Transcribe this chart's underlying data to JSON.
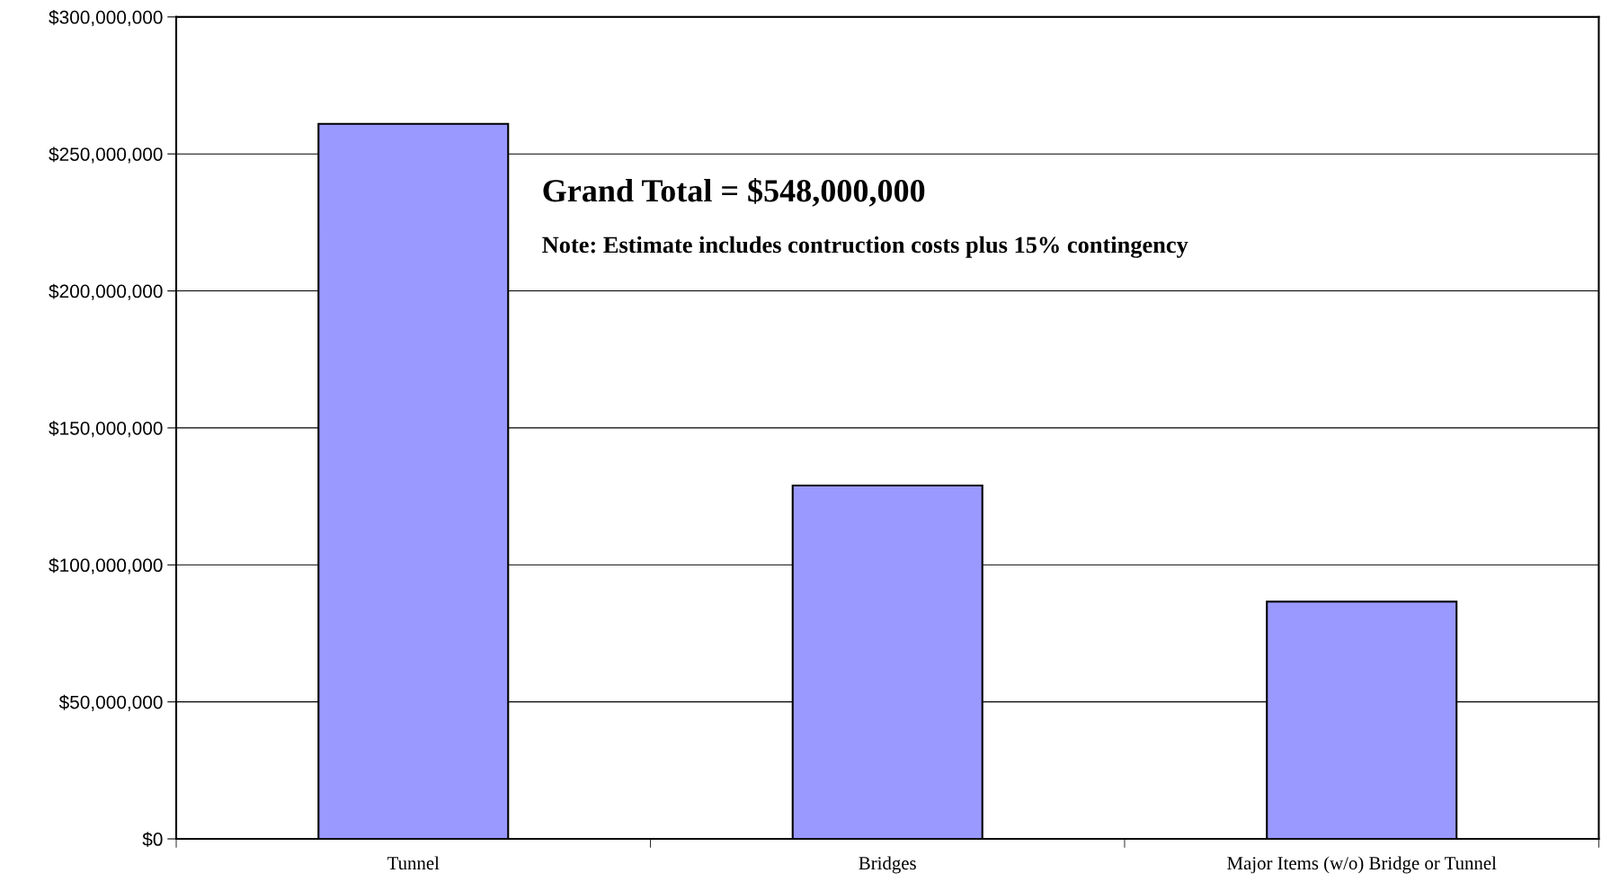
{
  "chart_data": {
    "type": "bar",
    "categories": [
      "Tunnel",
      "Bridges",
      "Major Items (w/o) Bridge or Tunnel"
    ],
    "values": [
      261000000,
      129000000,
      86600000
    ],
    "color": "#9999ff",
    "ylim": [
      0,
      300000000
    ],
    "yticks": [
      {
        "value": 0,
        "label": "$0"
      },
      {
        "value": 50000000,
        "label": "$50,000,000"
      },
      {
        "value": 100000000,
        "label": "$100,000,000"
      },
      {
        "value": 150000000,
        "label": "$150,000,000"
      },
      {
        "value": 200000000,
        "label": "$200,000,000"
      },
      {
        "value": 250000000,
        "label": "$250,000,000"
      },
      {
        "value": 300000000,
        "label": "$300,000,000"
      }
    ],
    "grid": "y",
    "legend": false,
    "annotations": [
      "Grand Total = $548,000,000",
      "Note: Estimate includes contruction costs plus 15% contingency"
    ]
  }
}
